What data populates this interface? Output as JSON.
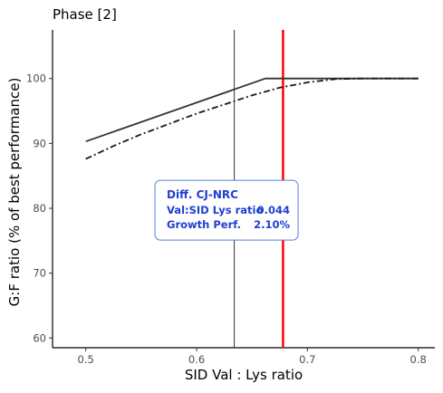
{
  "chart_data": {
    "type": "line",
    "title": "Phase [2]",
    "xlabel": "SID Val : Lys ratio",
    "ylabel": "G:F ratio (% of best performance)",
    "xlim": [
      0.47,
      0.815
    ],
    "ylim": [
      58.5,
      107.5
    ],
    "x_ticks": [
      0.5,
      0.6,
      0.7,
      0.8
    ],
    "y_ticks": [
      60,
      70,
      80,
      90,
      100
    ],
    "x_tick_labels": [
      "0.5",
      "0.6",
      "0.7",
      "0.8"
    ],
    "y_tick_labels": [
      "60",
      "70",
      "80",
      "90",
      "100"
    ],
    "grid": false,
    "legend": "none",
    "series": [
      {
        "style": "solid",
        "color": "#333333",
        "points": [
          [
            0.5,
            90.3
          ],
          [
            0.662,
            100.0
          ],
          [
            0.8,
            100.0
          ]
        ]
      },
      {
        "style": "dashdot",
        "color": "#1a1a1a",
        "points": [
          [
            0.5,
            87.6
          ],
          [
            0.525,
            89.6
          ],
          [
            0.55,
            91.4
          ],
          [
            0.575,
            93.0
          ],
          [
            0.6,
            94.6
          ],
          [
            0.625,
            96.0
          ],
          [
            0.65,
            97.4
          ],
          [
            0.675,
            98.6
          ],
          [
            0.7,
            99.4
          ],
          [
            0.725,
            99.9
          ],
          [
            0.75,
            100.0
          ],
          [
            0.8,
            100.0
          ]
        ]
      }
    ],
    "vlines": [
      {
        "x": 0.634,
        "color": "#333333",
        "width": 1
      },
      {
        "x": 0.678,
        "color": "#ff0000",
        "width": 2.5
      }
    ],
    "annotation": {
      "x": 0.627,
      "y": 79.7,
      "title": "Diff. CJ-NRC",
      "rows": [
        {
          "label": "Val:SID Lys ratio",
          "value": "0.044"
        },
        {
          "label": "Growth Perf.",
          "value": "2.10%"
        }
      ],
      "color": "#1f3fd1",
      "border_color": "#5a7bdc"
    }
  }
}
